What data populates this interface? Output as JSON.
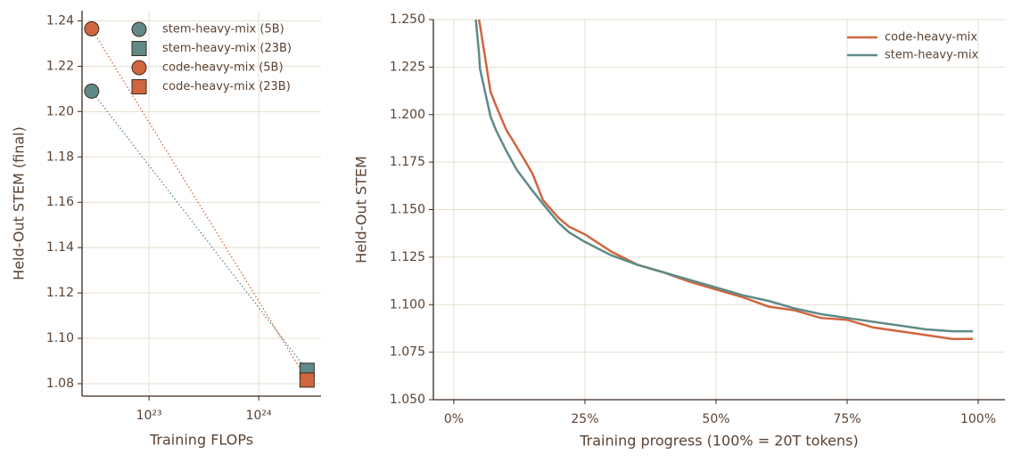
{
  "chart_data": [
    {
      "type": "scatter",
      "xlabel": "Training FLOPs",
      "ylabel": "Held-Out STEM (final)",
      "xlog": true,
      "grid": true,
      "legend": "upper right",
      "xlim": [
        2.45e+22,
        3.7e+24
      ],
      "xticks": [
        {
          "value": 1e+23,
          "label": "10²³"
        },
        {
          "value": 1e+24,
          "label": "10²⁴"
        }
      ],
      "ylim": [
        1.0745,
        1.2445
      ],
      "yticks": [
        1.08,
        {
          "value": 1.1,
          "label": "1.10"
        },
        1.12,
        1.14,
        1.16,
        1.18,
        {
          "value": 1.2,
          "label": "1.20"
        },
        1.22,
        1.24
      ],
      "series": [
        {
          "name": "stem-heavy-mix (5B)",
          "color": "#5f8a87",
          "marker": "circle",
          "x": [
            3e+22
          ],
          "values": [
            1.209
          ]
        },
        {
          "name": "stem-heavy-mix (23B)",
          "color": "#5f8a87",
          "marker": "square",
          "x": [
            2.76e+24
          ],
          "values": [
            1.0859
          ]
        },
        {
          "name": "code-heavy-mix (5B)",
          "color": "#d0653e",
          "marker": "circle",
          "x": [
            3e+22
          ],
          "values": [
            1.2365
          ]
        },
        {
          "name": "code-heavy-mix (23B)",
          "color": "#d0653e",
          "marker": "square",
          "x": [
            2.76e+24
          ],
          "values": [
            1.0816
          ]
        }
      ]
    },
    {
      "type": "line",
      "xlabel": "Training progress (100% = 20T tokens)",
      "ylabel": "Held-Out STEM",
      "grid": true,
      "legend": "upper right",
      "xlim": [
        -3.9,
        105.1
      ],
      "xticks": [
        {
          "value": 0,
          "label": "0%"
        },
        {
          "value": 25,
          "label": "25%"
        },
        {
          "value": 50,
          "label": "50%"
        },
        {
          "value": 75,
          "label": "75%"
        },
        {
          "value": 100,
          "label": "100%"
        }
      ],
      "ylim": [
        1.05,
        1.25
      ],
      "yticks": [
        {
          "value": 1.05,
          "label": "1.050"
        },
        {
          "value": 1.075,
          "label": "1.075"
        },
        {
          "value": 1.1,
          "label": "1.100"
        },
        {
          "value": 1.125,
          "label": "1.125"
        },
        {
          "value": 1.15,
          "label": "1.150"
        },
        {
          "value": 1.175,
          "label": "1.175"
        },
        {
          "value": 1.2,
          "label": "1.200"
        },
        {
          "value": 1.225,
          "label": "1.225"
        },
        {
          "value": 1.25,
          "label": "1.250"
        }
      ],
      "x": [
        4.2,
        4.8,
        5,
        7,
        8,
        10,
        12,
        15,
        17,
        20,
        22,
        25,
        30,
        35,
        40,
        45,
        50,
        55,
        60,
        65,
        70,
        75,
        80,
        85,
        90,
        95,
        99
      ],
      "series": [
        {
          "name": "code-heavy-mix",
          "color": "#d0653e",
          "values": [
            null,
            1.25,
            1.247,
            1.212,
            1.205,
            1.192,
            1.183,
            1.169,
            1.155,
            1.1456,
            1.141,
            1.137,
            1.128,
            1.121,
            1.117,
            1.112,
            1.108,
            1.104,
            1.099,
            1.097,
            1.093,
            1.092,
            1.088,
            1.086,
            1.084,
            1.082,
            1.082
          ]
        },
        {
          "name": "stem-heavy-mix",
          "color": "#5f8a87",
          "values": [
            1.25,
            1.232,
            1.224,
            1.199,
            1.192,
            1.181,
            1.171,
            1.16,
            1.153,
            1.143,
            1.138,
            1.133,
            1.126,
            1.121,
            1.117,
            1.113,
            1.109,
            1.105,
            1.102,
            1.098,
            1.095,
            1.093,
            1.091,
            1.089,
            1.087,
            1.086,
            1.086
          ]
        }
      ]
    }
  ]
}
